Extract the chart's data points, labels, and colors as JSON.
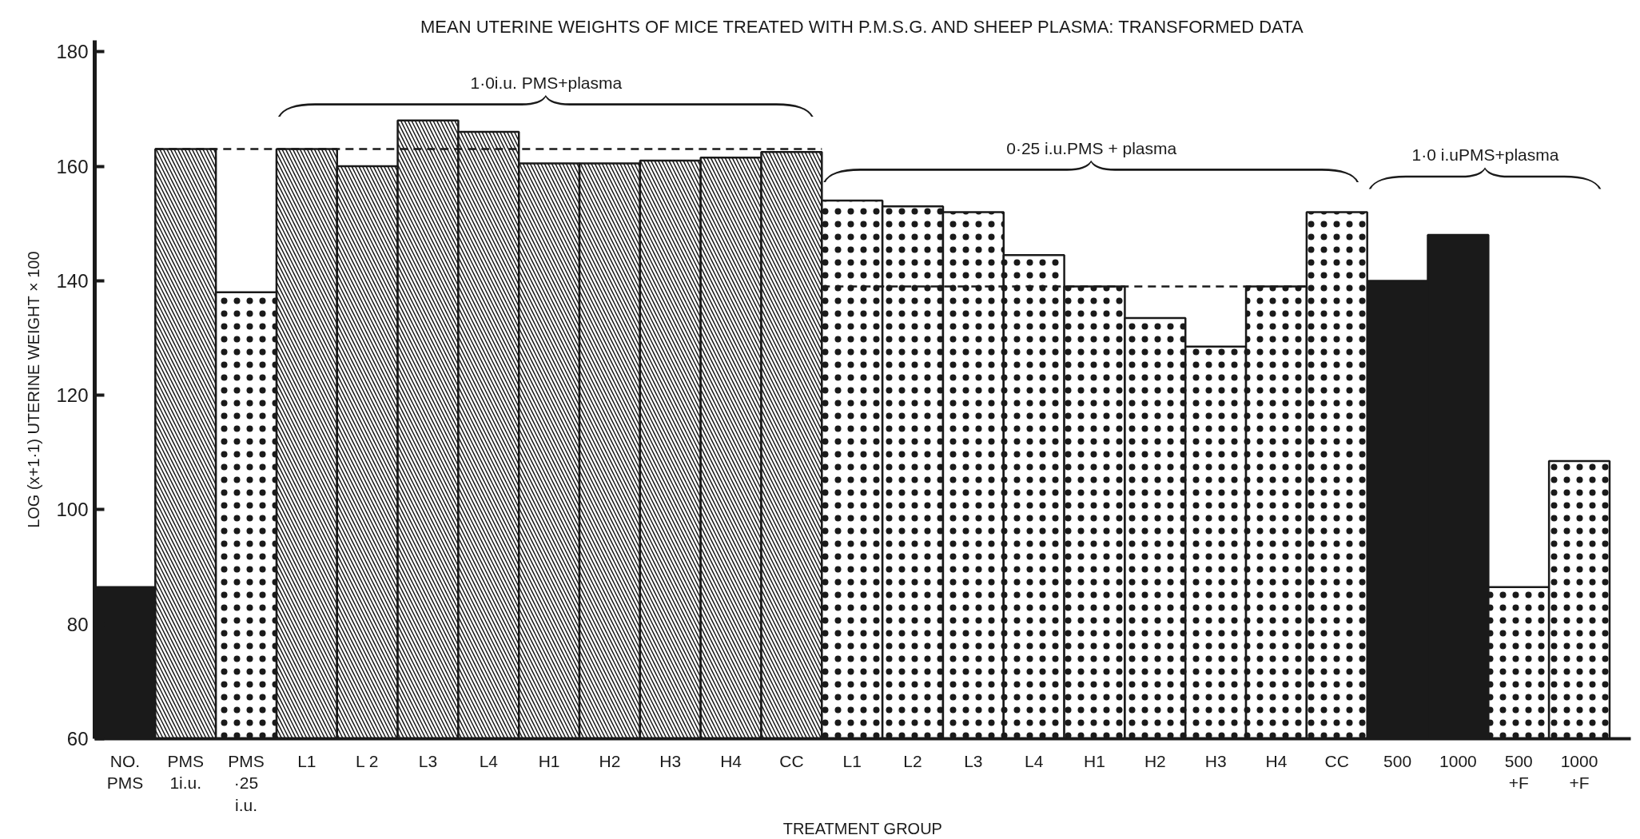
{
  "chart_data": {
    "type": "bar",
    "title": "MEAN UTERINE WEIGHTS OF MICE TREATED WITH P.M.S.G. AND SHEEP PLASMA: TRANSFORMED DATA",
    "xlabel": "TREATMENT GROUP",
    "ylabel": "LOG (x+1·1) UTERINE WEIGHT × 100",
    "categories": [
      "NO.\nPMS",
      "PMS\n1i.u.",
      "PMS\n·25\ni.u.",
      "L1",
      "L 2",
      "L3",
      "L4",
      "H1",
      "H2",
      "H3",
      "H4",
      "CC",
      "L1",
      "L2",
      "L3",
      "L4",
      "H1",
      "H2",
      "H3",
      "H4",
      "CC",
      "500",
      "1000",
      "500\n+F",
      "1000\n+F"
    ],
    "stacked": true,
    "series": [
      {
        "color": "#1a1a1a",
        "values": [
          86.5,
          null,
          null,
          null,
          null,
          null,
          null,
          null,
          null,
          null,
          null,
          null,
          null,
          null,
          null,
          null,
          null,
          null,
          null,
          null,
          null,
          140,
          148,
          null,
          null
        ]
      },
      {
        "color": "#1a1a1a",
        "values": [
          null,
          163,
          null,
          163,
          160,
          168,
          166,
          160.5,
          160.5,
          161,
          161.5,
          162.5,
          null,
          null,
          null,
          null,
          null,
          null,
          null,
          null,
          null,
          null,
          null,
          null,
          null
        ]
      },
      {
        "color": "#1a1a1a",
        "values": [
          null,
          null,
          138,
          null,
          null,
          null,
          null,
          null,
          null,
          null,
          null,
          null,
          154,
          153,
          152,
          144.5,
          139,
          133.5,
          128.5,
          139,
          152,
          null,
          null,
          86.5,
          108.5
        ]
      }
    ],
    "ylim": [
      60,
      182
    ],
    "yticks": [
      60,
      80,
      100,
      120,
      140,
      160,
      180
    ],
    "ref_lines": [
      {
        "axis": "y",
        "value": 163,
        "line_style": "dashed",
        "color": "#1a1a1a"
      },
      {
        "axis": "y",
        "value": 139,
        "line_style": "dashed",
        "color": "#1a1a1a"
      }
    ],
    "annotations": [
      "1·0i.u. PMS+plasma",
      "0·25 i.u.PMS + plasma",
      "1·0 i.uPMS+plasma"
    ]
  }
}
